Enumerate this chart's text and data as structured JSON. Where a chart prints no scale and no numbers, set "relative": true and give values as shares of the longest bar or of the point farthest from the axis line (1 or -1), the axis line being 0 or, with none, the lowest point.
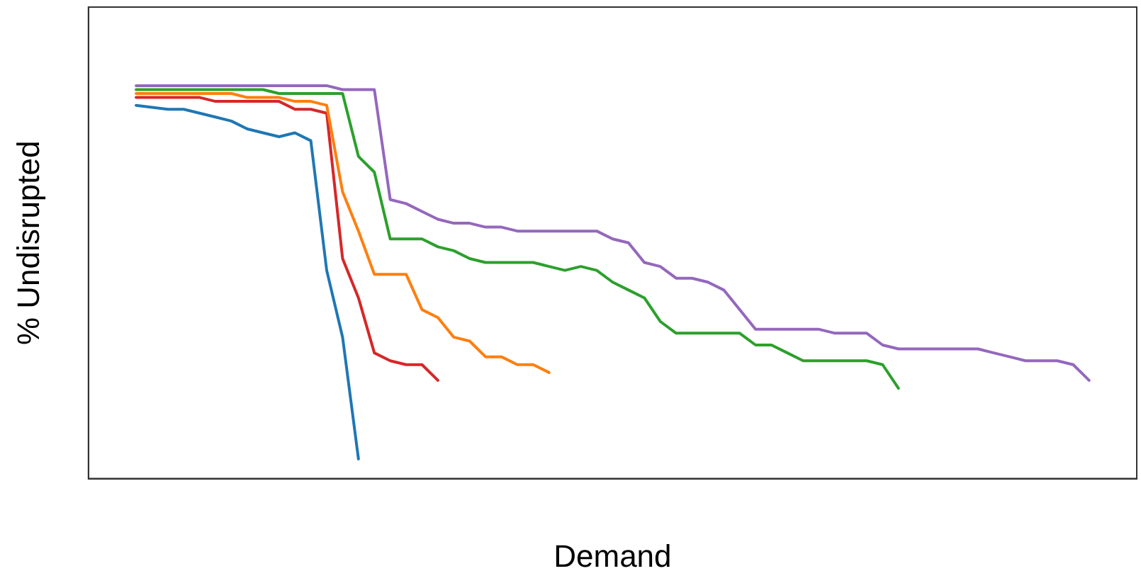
{
  "chart_data": {
    "type": "line",
    "xlabel": "Demand",
    "ylabel": "% Undisrupted",
    "relative": true,
    "grid": false,
    "legend": false,
    "marker": "none",
    "line_style": "solid",
    "categories": [
      null,
      null,
      null,
      null,
      null,
      null,
      null,
      null,
      null,
      null,
      null,
      null,
      null,
      null,
      null,
      null,
      null,
      null,
      null,
      null,
      null,
      null,
      null,
      null,
      null,
      null,
      null,
      null,
      null,
      null,
      null,
      null,
      null,
      null,
      null,
      null,
      null,
      null,
      null,
      null,
      null,
      null,
      null,
      null,
      null,
      null,
      null,
      null,
      null,
      null,
      null,
      null,
      null,
      null,
      null,
      null,
      null,
      null,
      null,
      null,
      null,
      null,
      null,
      null,
      null,
      null,
      null
    ],
    "series": [
      {
        "color": "#1f77b4",
        "values": [
          null,
          null,
          null,
          0.95,
          0.945,
          0.94,
          0.94,
          0.93,
          0.92,
          0.91,
          0.89,
          0.88,
          0.87,
          0.88,
          0.86,
          0.53,
          0.36,
          0.05,
          null,
          null,
          null,
          null,
          null,
          null,
          null,
          null,
          null,
          null,
          null,
          null,
          null,
          null,
          null,
          null,
          null,
          null,
          null,
          null,
          null,
          null,
          null,
          null,
          null,
          null,
          null,
          null,
          null,
          null,
          null,
          null,
          null,
          null,
          null,
          null,
          null,
          null,
          null,
          null,
          null,
          null,
          null,
          null,
          null,
          null,
          null,
          null,
          null
        ]
      },
      {
        "color": "#ff7f0e",
        "values": [
          null,
          null,
          null,
          0.98,
          0.98,
          0.98,
          0.98,
          0.98,
          0.98,
          0.98,
          0.97,
          0.97,
          0.97,
          0.96,
          0.96,
          0.95,
          0.73,
          0.63,
          0.52,
          0.52,
          0.52,
          0.43,
          0.41,
          0.36,
          0.35,
          0.31,
          0.31,
          0.29,
          0.29,
          0.27,
          null,
          null,
          null,
          null,
          null,
          null,
          null,
          null,
          null,
          null,
          null,
          null,
          null,
          null,
          null,
          null,
          null,
          null,
          null,
          null,
          null,
          null,
          null,
          null,
          null,
          null,
          null,
          null,
          null,
          null,
          null,
          null,
          null,
          null,
          null,
          null,
          null
        ]
      },
      {
        "color": "#2ca02c",
        "values": [
          null,
          null,
          null,
          0.99,
          0.99,
          0.99,
          0.99,
          0.99,
          0.99,
          0.99,
          0.99,
          0.99,
          0.98,
          0.98,
          0.98,
          0.98,
          0.98,
          0.82,
          0.78,
          0.61,
          0.61,
          0.61,
          0.59,
          0.58,
          0.56,
          0.55,
          0.55,
          0.55,
          0.55,
          0.54,
          0.53,
          0.54,
          0.53,
          0.5,
          0.48,
          0.46,
          0.4,
          0.37,
          0.37,
          0.37,
          0.37,
          0.37,
          0.34,
          0.34,
          0.32,
          0.3,
          0.3,
          0.3,
          0.3,
          0.3,
          0.29,
          0.23,
          null,
          null,
          null,
          null,
          null,
          null,
          null,
          null,
          null,
          null,
          null,
          null,
          null,
          null,
          null
        ]
      },
      {
        "color": "#d62728",
        "values": [
          null,
          null,
          null,
          0.97,
          0.97,
          0.97,
          0.97,
          0.97,
          0.96,
          0.96,
          0.96,
          0.96,
          0.96,
          0.94,
          0.94,
          0.93,
          0.56,
          0.46,
          0.32,
          0.3,
          0.29,
          0.29,
          0.25,
          null,
          null,
          null,
          null,
          null,
          null,
          null,
          null,
          null,
          null,
          null,
          null,
          null,
          null,
          null,
          null,
          null,
          null,
          null,
          null,
          null,
          null,
          null,
          null,
          null,
          null,
          null,
          null,
          null,
          null,
          null,
          null,
          null,
          null,
          null,
          null,
          null,
          null,
          null,
          null,
          null,
          null,
          null,
          null
        ]
      },
      {
        "color": "#9467bd",
        "values": [
          null,
          null,
          null,
          1.0,
          1.0,
          1.0,
          1.0,
          1.0,
          1.0,
          1.0,
          1.0,
          1.0,
          1.0,
          1.0,
          1.0,
          1.0,
          0.99,
          0.99,
          0.99,
          0.71,
          0.7,
          0.68,
          0.66,
          0.65,
          0.65,
          0.64,
          0.64,
          0.63,
          0.63,
          0.63,
          0.63,
          0.63,
          0.63,
          0.61,
          0.6,
          0.55,
          0.54,
          0.51,
          0.51,
          0.5,
          0.48,
          0.43,
          0.38,
          0.38,
          0.38,
          0.38,
          0.38,
          0.37,
          0.37,
          0.37,
          0.34,
          0.33,
          0.33,
          0.33,
          0.33,
          0.33,
          0.33,
          0.32,
          0.31,
          0.3,
          0.3,
          0.3,
          0.29,
          0.25,
          null,
          null,
          null
        ]
      }
    ]
  }
}
